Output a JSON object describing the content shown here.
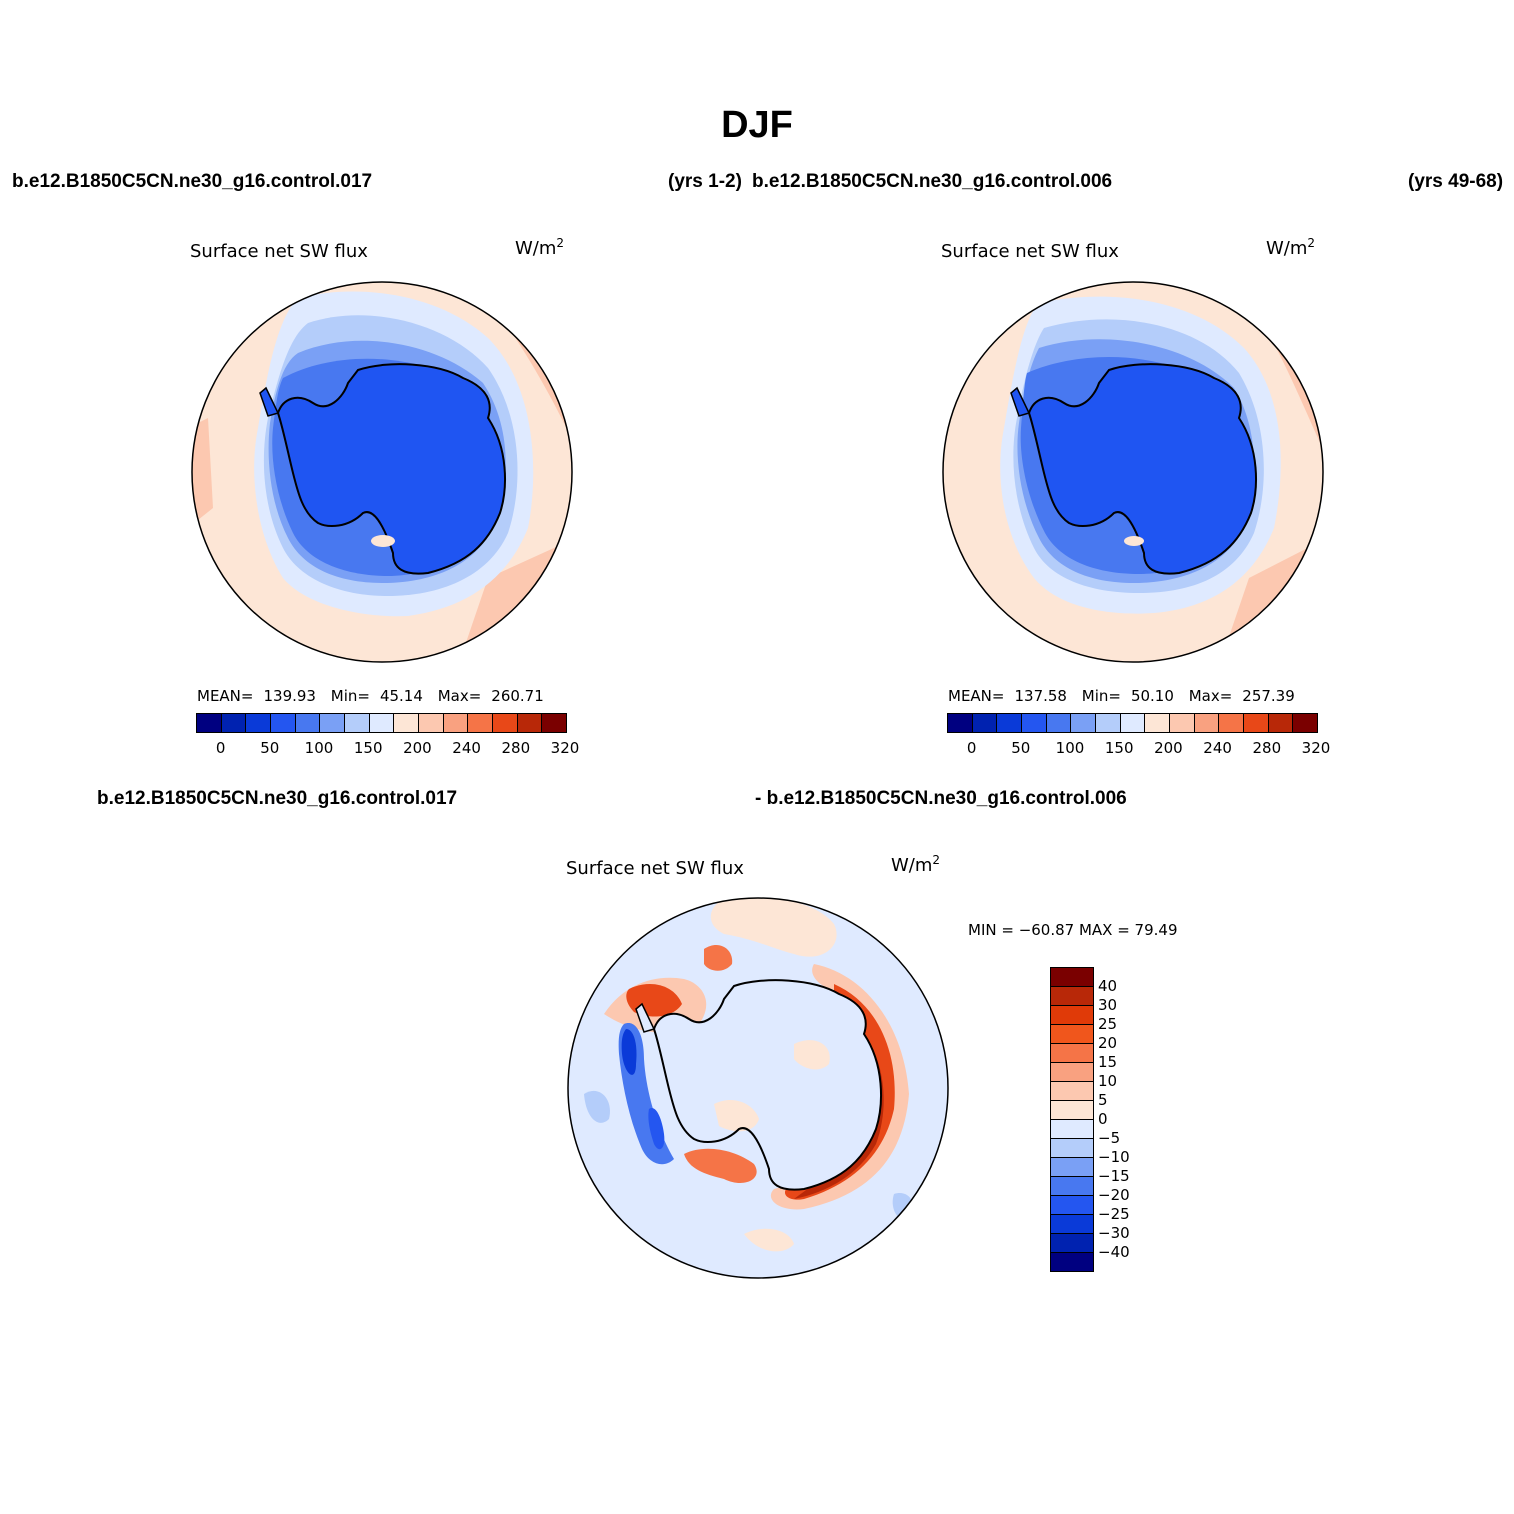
{
  "figure": {
    "title": "DJF",
    "case_top_left": "b.e12.B1850C5CN.ne30_g16.control.017",
    "years_top_left": "(yrs 1-2)",
    "case_top_right": "b.e12.B1850C5CN.ne30_g16.control.006",
    "years_top_right": "(yrs 49-68)",
    "case_diff_left": "b.e12.B1850C5CN.ne30_g16.control.017",
    "case_diff_right": "- b.e12.B1850C5CN.ne30_g16.control.006"
  },
  "panels": [
    {
      "title": "Surface net SW flux",
      "units": "W/m",
      "units_sup": "2",
      "mean_label": "MEAN=",
      "mean": "139.93",
      "min_label": "Min=",
      "min": "45.14",
      "max_label": "Max=",
      "max": "260.71",
      "tick_labels": [
        "0",
        "50",
        "100",
        "150",
        "200",
        "240",
        "280",
        "320"
      ]
    },
    {
      "title": "Surface net SW flux",
      "units": "W/m",
      "units_sup": "2",
      "mean_label": "MEAN=",
      "mean": "137.58",
      "min_label": "Min=",
      "min": "50.10",
      "max_label": "Max=",
      "max": "257.39",
      "tick_labels": [
        "0",
        "50",
        "100",
        "150",
        "200",
        "240",
        "280",
        "320"
      ]
    },
    {
      "title": "Surface net SW flux",
      "units": "W/m",
      "units_sup": "2",
      "minmax": "MIN = −60.87 MAX =   79.49",
      "tick_labels": [
        "40",
        "30",
        "25",
        "20",
        "15",
        "10",
        "5",
        "0",
        "−5",
        "−10",
        "−15",
        "−20",
        "−25",
        "−30",
        "−40"
      ]
    }
  ],
  "colors": {
    "abs_scale": [
      "#000080",
      "#0022b0",
      "#0a3ad8",
      "#2456f0",
      "#4878f0",
      "#7aa0f5",
      "#b4cdfa",
      "#dfeaff",
      "#fde6d6",
      "#fcc8b0",
      "#f9a180",
      "#f57447",
      "#e84818",
      "#b82808",
      "#7a0000"
    ],
    "diff_scale": [
      "#7a0000",
      "#b82808",
      "#e03a08",
      "#f0561c",
      "#f57447",
      "#f9a180",
      "#fcc8b0",
      "#fde6d6",
      "#dfeaff",
      "#b4cdfa",
      "#7aa0f5",
      "#4878f0",
      "#2456f0",
      "#0a3ad8",
      "#0022b0",
      "#000080"
    ],
    "ice_blue": "#1f55f2",
    "warm_ocean": "#fde6d6",
    "coast": "#000000"
  }
}
